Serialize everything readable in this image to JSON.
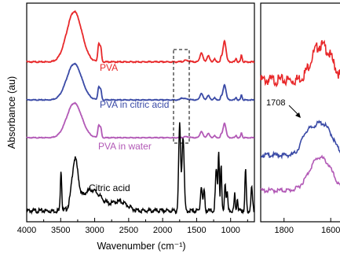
{
  "chart_data": [
    {
      "type": "line",
      "title": "",
      "xlabel": "Wavenumber (cm⁻¹)",
      "ylabel": "Absorbance (au)",
      "xlim": [
        4000,
        650
      ],
      "x_ticks": [
        "4000",
        "3500",
        "3000",
        "2500",
        "2000",
        "1500",
        "1000"
      ],
      "y_ticks": false,
      "grid": false,
      "series": [
        {
          "name": "PVA",
          "color": "#e8282a",
          "offset": 0.0
        },
        {
          "name": "PVA in citric acid",
          "color": "#3a4aa6",
          "offset": 1.0
        },
        {
          "name": "PVA in water",
          "color": "#b259b6",
          "offset": 2.0
        },
        {
          "name": "Citric acid",
          "color": "#000000",
          "offset": 3.6
        }
      ],
      "highlight_box_x": [
        1800,
        1600
      ]
    },
    {
      "type": "line",
      "title": "",
      "xlabel": "",
      "ylabel": "",
      "xlim": [
        1900,
        1530
      ],
      "x_ticks": [
        "1800",
        "1600"
      ],
      "annotation": "1708",
      "series": [
        {
          "name": "PVA",
          "color": "#e8282a"
        },
        {
          "name": "PVA in citric acid",
          "color": "#3a4aa6"
        },
        {
          "name": "PVA in water",
          "color": "#b259b6"
        }
      ]
    }
  ]
}
